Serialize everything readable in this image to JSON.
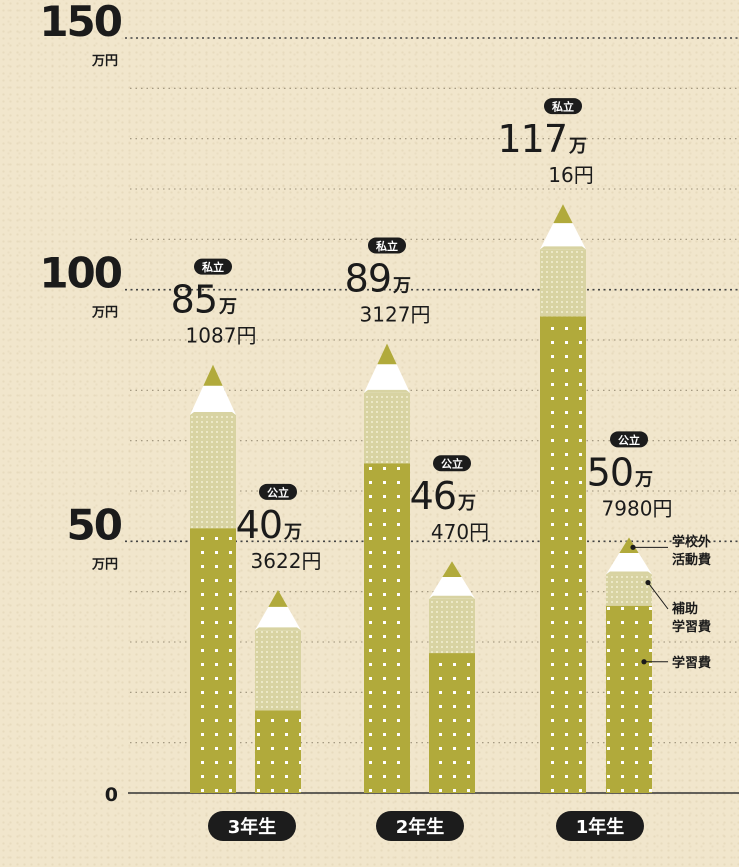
{
  "chart_data": {
    "type": "bar",
    "stacked": true,
    "y_axis": {
      "ylim": [
        0,
        150
      ],
      "ticks": [
        {
          "value": 150,
          "label": "150",
          "unit": "万円"
        },
        {
          "value": 100,
          "label": "100",
          "unit": "万円"
        },
        {
          "value": 50,
          "label": "50",
          "unit": "万円"
        },
        {
          "value": 0,
          "label": "0",
          "unit": ""
        }
      ]
    },
    "categories": [
      "3年生",
      "2年生",
      "1年生"
    ],
    "groups": [
      {
        "category": "3年生",
        "bars": [
          {
            "type_label": "私立",
            "total": 85.1087,
            "total_main": "85",
            "total_unit": "万",
            "total_sub": "1087円",
            "stack": [
              52.6,
              22.5,
              10.0
            ]
          },
          {
            "type_label": "公立",
            "total": 40.3622,
            "total_main": "40",
            "total_unit": "万",
            "total_sub": "3622円",
            "stack": [
              16.4,
              15.9,
              8.0
            ]
          }
        ]
      },
      {
        "category": "2年生",
        "bars": [
          {
            "type_label": "私立",
            "total": 89.3127,
            "total_main": "89",
            "total_unit": "万",
            "total_sub": "3127円",
            "stack": [
              65.5,
              14.0,
              9.8
            ]
          },
          {
            "type_label": "公立",
            "total": 46.047,
            "total_main": "46",
            "total_unit": "万",
            "total_sub": "470円",
            "stack": [
              27.8,
              10.8,
              7.4
            ]
          }
        ]
      },
      {
        "category": "1年生",
        "bars": [
          {
            "type_label": "私立",
            "total": 117.0016,
            "total_main": "117",
            "total_unit": "万",
            "total_sub": "16円",
            "stack": [
              94.7,
              13.3,
              9.0
            ]
          },
          {
            "type_label": "公立",
            "total": 50.798,
            "total_main": "50",
            "total_unit": "万",
            "total_sub": "7980円",
            "stack": [
              37.2,
              6.2,
              7.4
            ]
          }
        ]
      }
    ],
    "series": [
      {
        "name": "学習費",
        "color": "#b1aa3b"
      },
      {
        "name": "補助学習費",
        "color": "#d8d3a2"
      },
      {
        "name": "学校外活動費",
        "color": "#b1aa3b"
      }
    ],
    "legend": {
      "placement": "right",
      "entries": [
        {
          "lines": [
            "学校外",
            "活動費"
          ]
        },
        {
          "lines": [
            "補助",
            "学習費"
          ]
        },
        {
          "lines": [
            "学習費"
          ]
        }
      ]
    },
    "grid": "dotted"
  },
  "colors": {
    "pencil_body": "#b1aa3b",
    "pencil_mid": "#d8d3a2",
    "pencil_tip": "#b1aa3b",
    "pencil_cone": "#ffffff",
    "badge": "#1c1c1c",
    "text": "#1b1b1b",
    "background": "#f1e6cc"
  }
}
